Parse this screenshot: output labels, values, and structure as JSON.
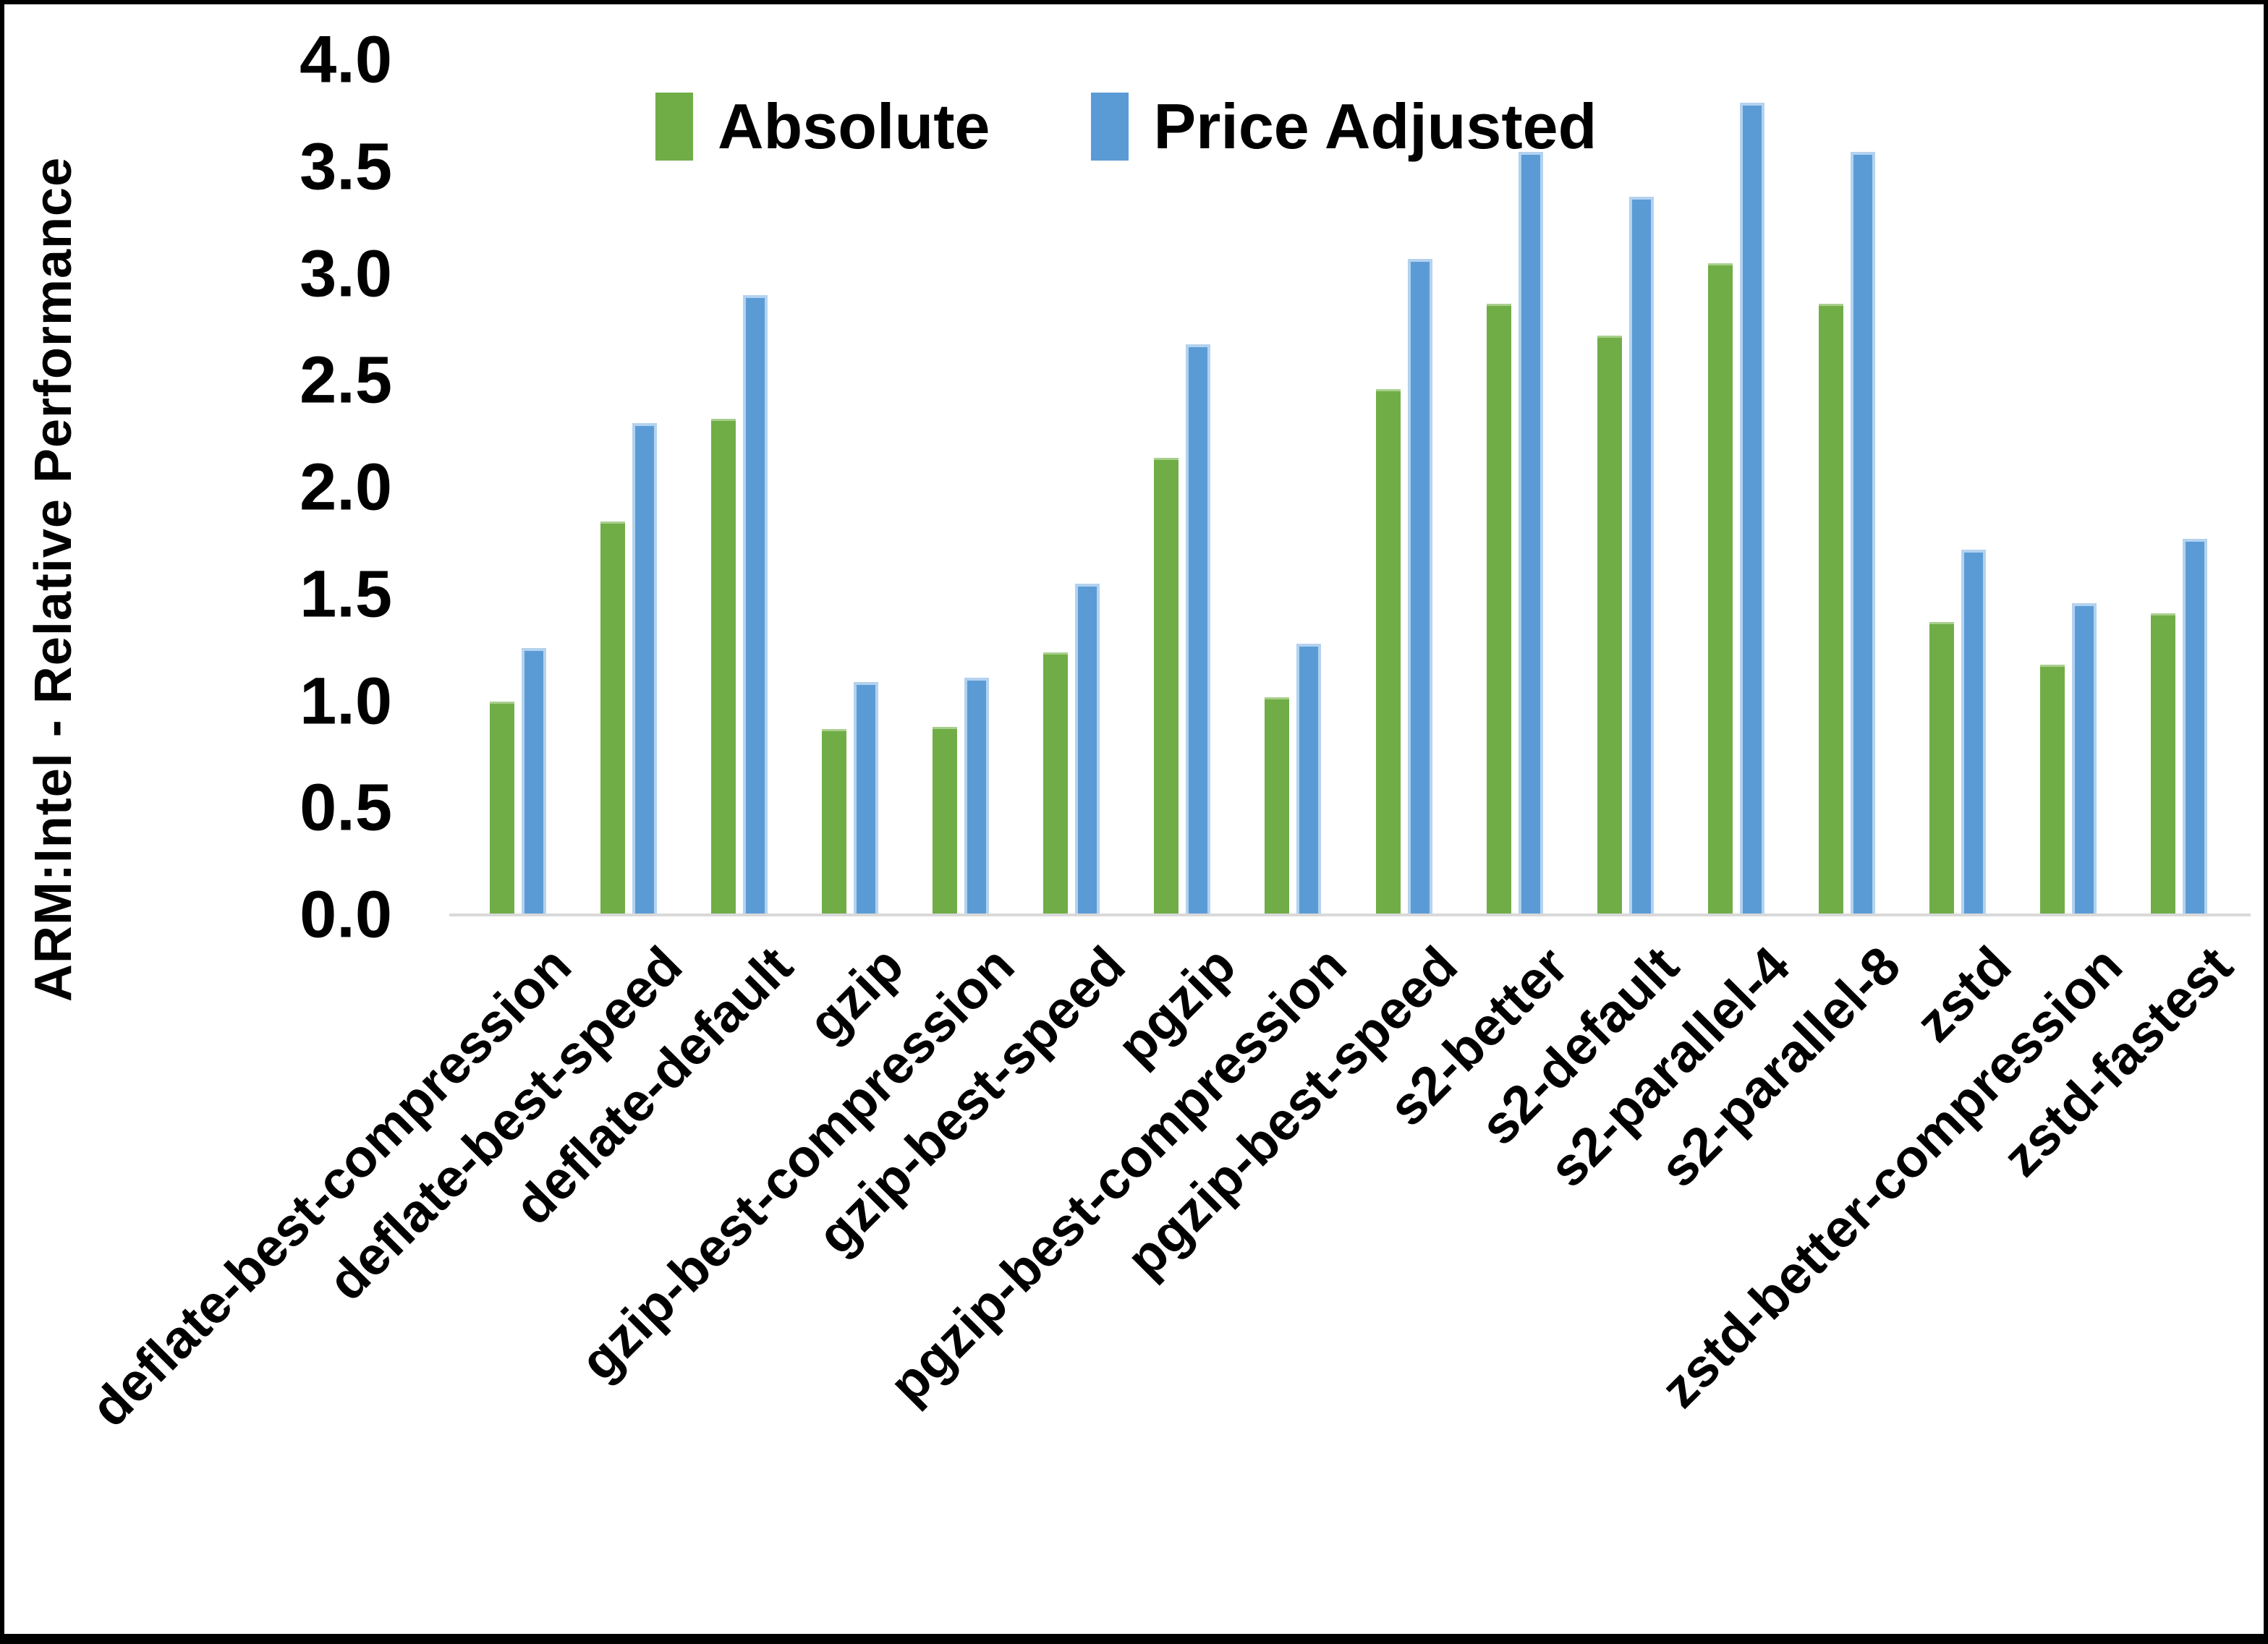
{
  "chart_data": {
    "type": "bar",
    "title": "",
    "ylabel": "ARM:Intel - Relative Performance",
    "xlabel": "",
    "ylim": [
      0.0,
      4.0
    ],
    "ytick_step": 0.5,
    "yticks": [
      "0.0",
      "0.5",
      "1.0",
      "1.5",
      "2.0",
      "2.5",
      "3.0",
      "3.5",
      "4.0"
    ],
    "grid": false,
    "legend_position": "top",
    "axis_line_color": "#d9d9d9",
    "categories": [
      "deflate-best-compression",
      "deflate-best-speed",
      "deflate-default",
      "gzip",
      "gzip-best-compression",
      "gzip-best-speed",
      "pgzip",
      "pgzip-best-compression",
      "pgzip-best-speed",
      "s2-better",
      "s2-default",
      "s2-parallel-4",
      "s2-parallel-8",
      "zstd",
      "zstd-better-compression",
      "zstd-fastest"
    ],
    "series": [
      {
        "name": "Absolute",
        "color": "#70AD47",
        "values": [
          1.0,
          1.84,
          2.32,
          0.87,
          0.88,
          1.23,
          2.14,
          1.02,
          2.46,
          2.86,
          2.71,
          3.05,
          2.86,
          1.37,
          1.17,
          1.41
        ]
      },
      {
        "name": "Price Adjusted",
        "color": "#5B9BD5",
        "values": [
          1.25,
          2.3,
          2.9,
          1.09,
          1.11,
          1.55,
          2.67,
          1.27,
          3.07,
          3.57,
          3.36,
          3.8,
          3.57,
          1.71,
          1.46,
          1.76
        ]
      }
    ]
  }
}
